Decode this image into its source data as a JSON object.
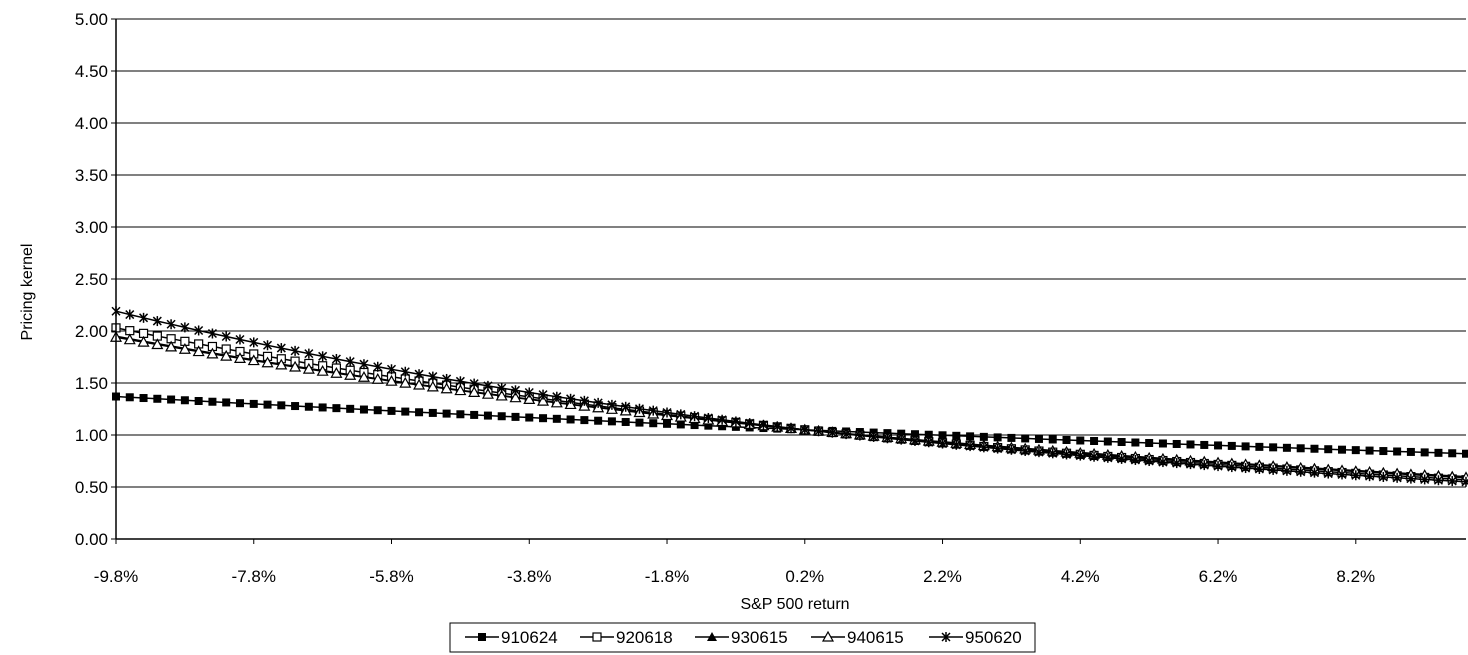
{
  "chart_data": {
    "type": "line",
    "title": "",
    "xlabel": "S&P 500 return",
    "ylabel": "Pricing kernel",
    "x": [
      -9.8,
      9.8
    ],
    "xlim": [
      -9.8,
      9.8
    ],
    "xticks": [
      "-9.8%",
      "-7.8%",
      "-5.8%",
      "-3.8%",
      "-1.8%",
      "0.2%",
      "2.2%",
      "4.2%",
      "6.2%",
      "8.2%"
    ],
    "ylim": [
      0,
      5
    ],
    "yticks": [
      "0.00",
      "0.50",
      "1.00",
      "1.50",
      "2.00",
      "2.50",
      "3.00",
      "3.50",
      "4.00",
      "4.50",
      "5.00"
    ],
    "grid": "horizontal",
    "legend_position": "bottom",
    "series": [
      {
        "name": "910624",
        "marker": "filled-square",
        "values": [
          1.37,
          0.82
        ]
      },
      {
        "name": "920618",
        "marker": "open-square",
        "values": [
          2.03,
          0.57
        ]
      },
      {
        "name": "930615",
        "marker": "filled-triangle",
        "values": [
          1.95,
          0.6
        ]
      },
      {
        "name": "940615",
        "marker": "open-triangle",
        "values": [
          1.94,
          0.59
        ]
      },
      {
        "name": "950620",
        "marker": "star",
        "values": [
          2.19,
          0.55
        ]
      }
    ]
  }
}
